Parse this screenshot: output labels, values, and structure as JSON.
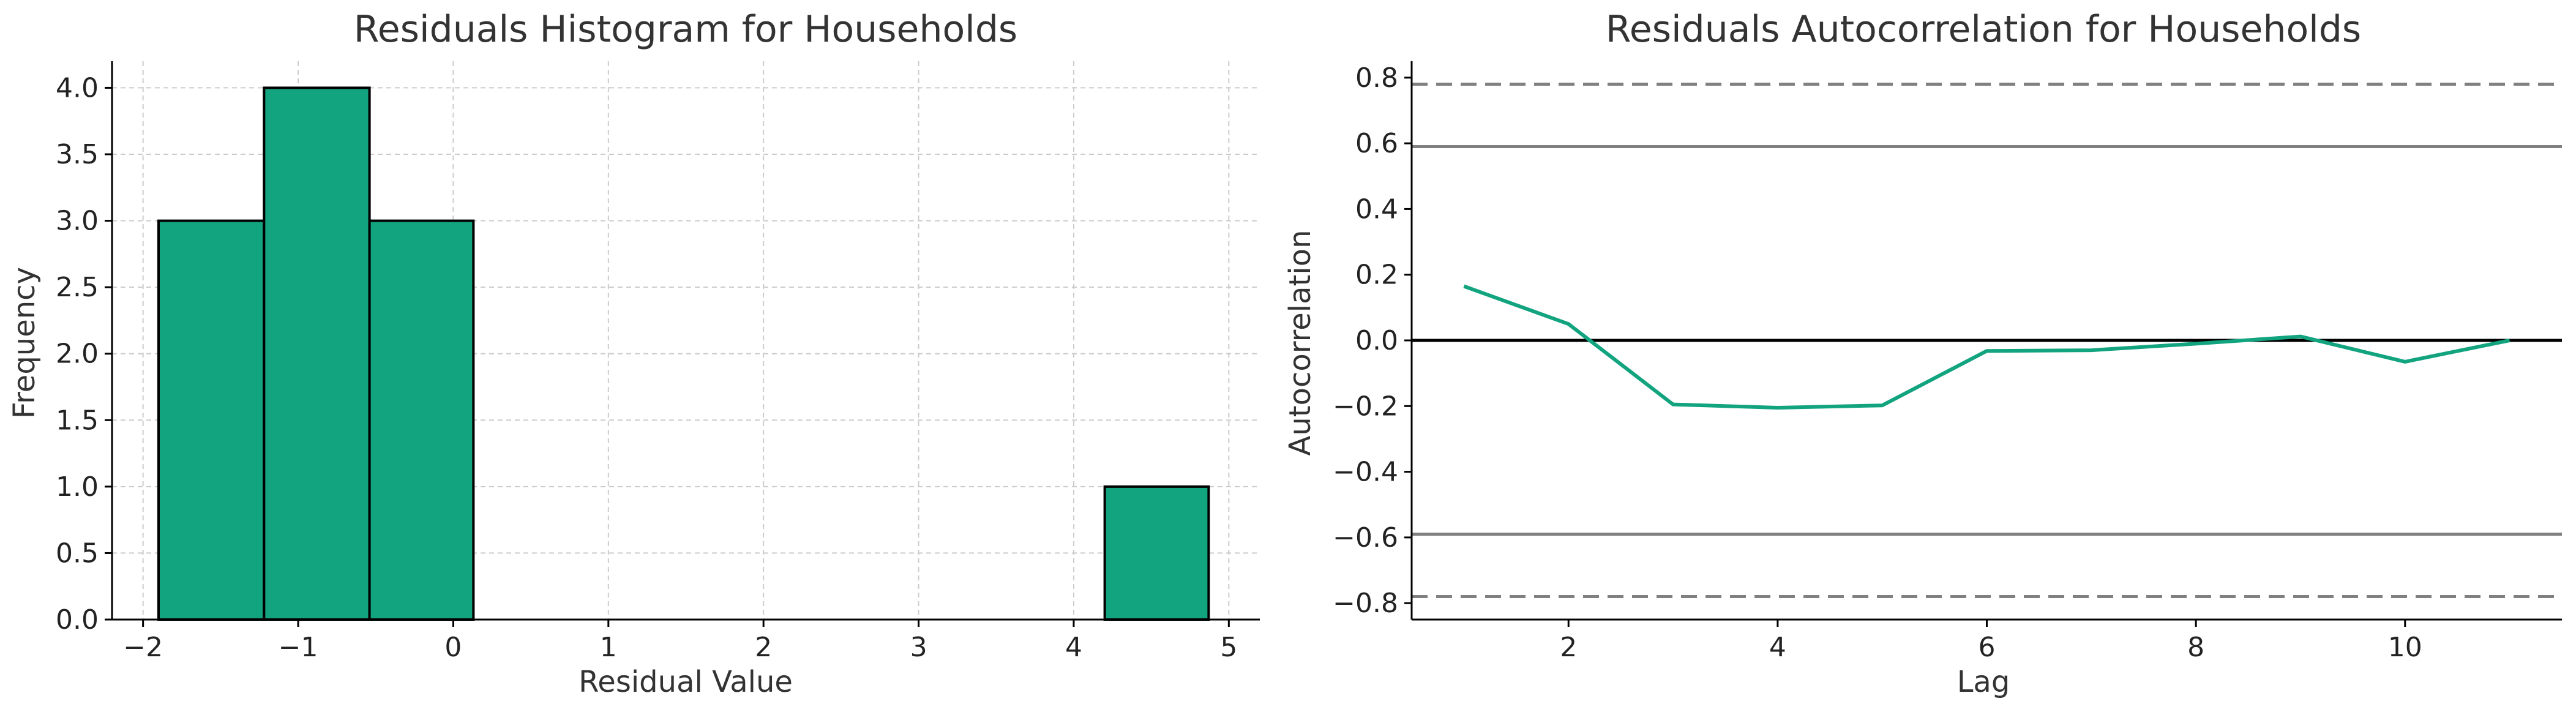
{
  "chart_data": [
    {
      "type": "bar",
      "title": "Residuals Histogram for Households",
      "xlabel": "Residual Value",
      "ylabel": "Frequency",
      "xlim": [
        -2.2,
        5.2
      ],
      "ylim": [
        0,
        4.2
      ],
      "grid": true,
      "bar_color": "#12a37f",
      "bar_edge_color": "#000000",
      "bins": [
        {
          "x0": -1.9,
          "x1": -1.22,
          "value": 3
        },
        {
          "x0": -1.22,
          "x1": -0.54,
          "value": 4
        },
        {
          "x0": -0.54,
          "x1": 0.13,
          "value": 3
        },
        {
          "x0": 4.2,
          "x1": 4.87,
          "value": 1
        }
      ],
      "xticks": [
        -2,
        -1,
        0,
        1,
        2,
        3,
        4,
        5
      ],
      "xtick_labels": [
        "−2",
        "−1",
        "0",
        "1",
        "2",
        "3",
        "4",
        "5"
      ],
      "yticks": [
        0,
        0.5,
        1,
        1.5,
        2,
        2.5,
        3,
        3.5,
        4
      ],
      "ytick_labels": [
        "0.0",
        "0.5",
        "1.0",
        "1.5",
        "2.0",
        "2.5",
        "3.0",
        "3.5",
        "4.0"
      ]
    },
    {
      "type": "line",
      "title": "Residuals Autocorrelation for Households",
      "xlabel": "Lag",
      "ylabel": "Autocorrelation",
      "xlim": [
        0.5,
        11.5
      ],
      "ylim": [
        -0.85,
        0.85
      ],
      "grid": false,
      "line_color": "#12a37f",
      "x": [
        1,
        2,
        3,
        4,
        5,
        6,
        7,
        8,
        9,
        10,
        11
      ],
      "y": [
        0.165,
        0.05,
        -0.195,
        -0.205,
        -0.198,
        -0.032,
        -0.03,
        -0.01,
        0.012,
        -0.065,
        0.0
      ],
      "reference_lines": [
        {
          "y": 0.78,
          "style": "dashed",
          "color": "#808080"
        },
        {
          "y": 0.59,
          "style": "solid",
          "color": "#808080"
        },
        {
          "y": 0.0,
          "style": "solid",
          "color": "#000000"
        },
        {
          "y": -0.59,
          "style": "solid",
          "color": "#808080"
        },
        {
          "y": -0.78,
          "style": "dashed",
          "color": "#808080"
        }
      ],
      "xticks": [
        2,
        4,
        6,
        8,
        10
      ],
      "xtick_labels": [
        "2",
        "4",
        "6",
        "8",
        "10"
      ],
      "yticks": [
        -0.8,
        -0.6,
        -0.4,
        -0.2,
        0.0,
        0.2,
        0.4,
        0.6,
        0.8
      ],
      "ytick_labels": [
        "−0.8",
        "−0.6",
        "−0.4",
        "−0.2",
        "0.0",
        "0.2",
        "0.4",
        "0.6",
        "0.8"
      ]
    }
  ]
}
